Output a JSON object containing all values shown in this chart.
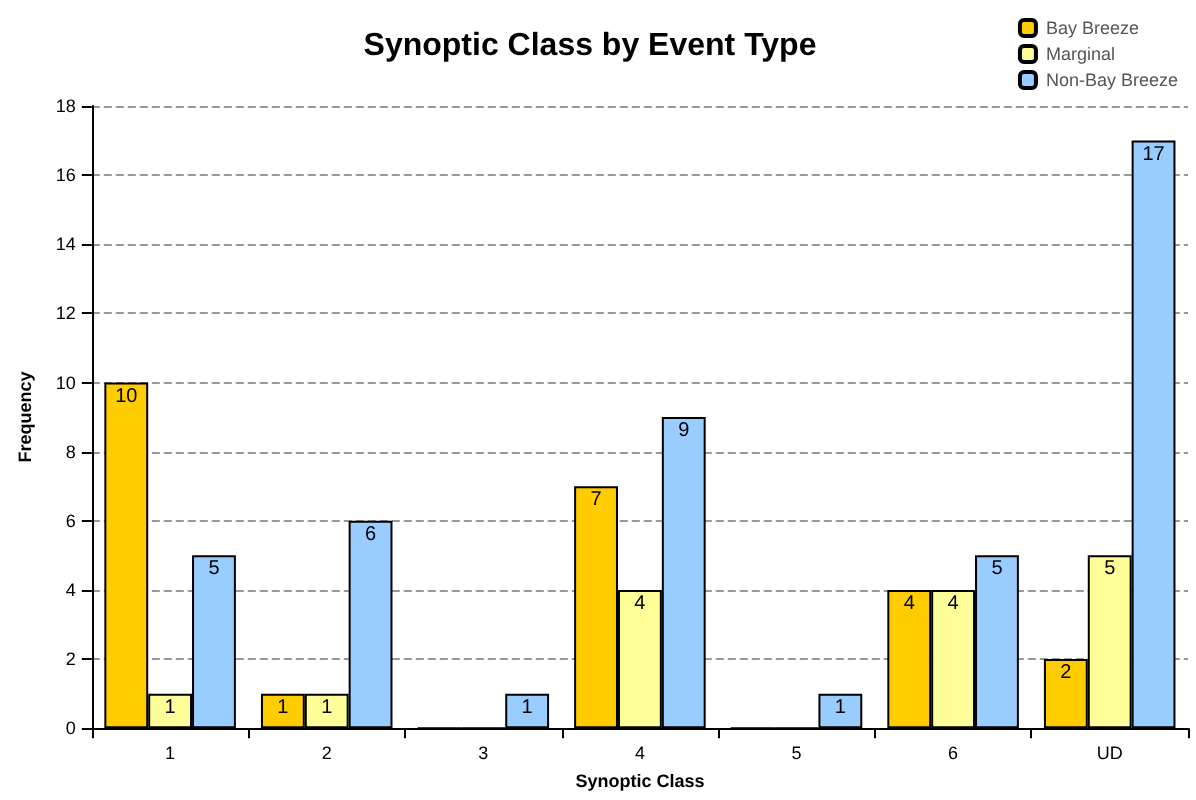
{
  "chart_data": {
    "type": "bar",
    "title": "Synoptic Class by Event Type",
    "xlabel": "Synoptic Class",
    "ylabel": "Frequency",
    "categories": [
      "1",
      "2",
      "3",
      "4",
      "5",
      "6",
      "UD"
    ],
    "series": [
      {
        "name": "Bay Breeze",
        "color": "#ffcc00",
        "values": [
          10,
          1,
          0,
          7,
          0,
          4,
          2
        ],
        "value_labels": [
          "10",
          "1",
          null,
          "7",
          null,
          "4",
          "2"
        ]
      },
      {
        "name": "Marginal",
        "color": "#ffff99",
        "values": [
          1,
          1,
          0,
          4,
          0,
          4,
          5
        ],
        "value_labels": [
          "1",
          "1",
          null,
          "4",
          null,
          "4",
          "5"
        ]
      },
      {
        "name": "Non-Bay Breeze",
        "color": "#99ccff",
        "values": [
          5,
          6,
          1,
          9,
          1,
          5,
          17
        ],
        "value_labels": [
          "5",
          "6",
          "1",
          "9",
          "1",
          "5",
          "17"
        ]
      }
    ],
    "ylim": [
      0,
      18
    ],
    "yticks": [
      0,
      2,
      4,
      6,
      8,
      10,
      12,
      14,
      16,
      18
    ],
    "grid": "y",
    "legend": "top right"
  }
}
